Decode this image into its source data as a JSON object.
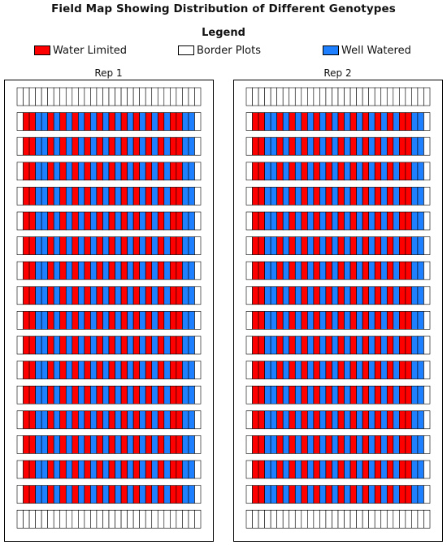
{
  "title": "Field Map Showing Distribution of Different Genotypes",
  "legend": {
    "title": "Legend",
    "items": [
      {
        "label": "Water Limited",
        "color": "#ff0000"
      },
      {
        "label": "Border Plots",
        "color": "#ffffff"
      },
      {
        "label": "Well Watered",
        "color": "#1e7fff"
      }
    ]
  },
  "reps": [
    {
      "label": "Rep 1"
    },
    {
      "label": "Rep 2"
    }
  ],
  "field": {
    "rows_per_rep": 18,
    "plots_per_row": 30,
    "border_rows": "first and last",
    "row_pattern": [
      "border",
      "water-limited",
      "water-limited",
      "well-watered x24",
      "well-watered",
      "well-watered",
      "border"
    ]
  }
}
